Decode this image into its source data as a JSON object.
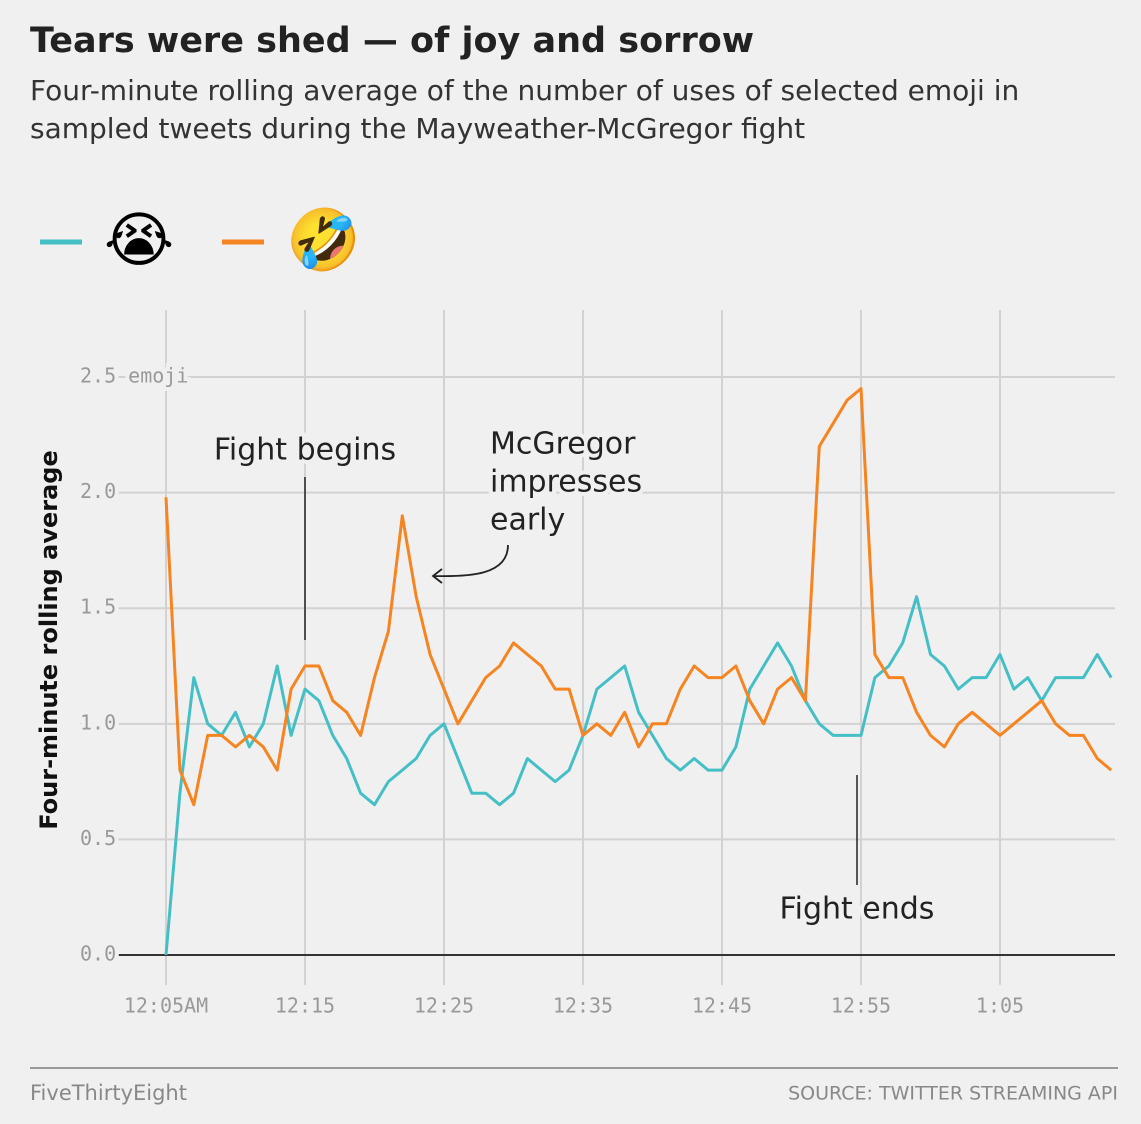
{
  "chart_data": {
    "type": "line",
    "title": "Tears were shed — of joy and sorrow",
    "subtitle": [
      "Four-minute rolling average of the number of uses of selected emoji in",
      "sampled tweets during the Mayweather-McGregor fight"
    ],
    "y_label": "Four-minute rolling average",
    "x": [
      5,
      6,
      7,
      8,
      9,
      10,
      11,
      12,
      13,
      14,
      15,
      16,
      17,
      18,
      19,
      20,
      21,
      22,
      23,
      24,
      25,
      26,
      27,
      28,
      29,
      30,
      31,
      32,
      33,
      34,
      35,
      36,
      37,
      38,
      39,
      40,
      41,
      42,
      43,
      44,
      45,
      46,
      47,
      48,
      49,
      50,
      51,
      52,
      53,
      54,
      55,
      56,
      57,
      58,
      59,
      60,
      61,
      62,
      63,
      64,
      65,
      66,
      67,
      68,
      69,
      70,
      71,
      72,
      73
    ],
    "series": [
      {
        "name": "😭",
        "color": "#45bfc6",
        "values": [
          0,
          0.7,
          1.2,
          1.0,
          0.95,
          1.05,
          0.9,
          1.0,
          1.25,
          0.95,
          1.15,
          1.1,
          0.95,
          0.85,
          0.7,
          0.65,
          0.75,
          0.8,
          0.85,
          0.95,
          1.0,
          0.85,
          0.7,
          0.7,
          0.65,
          0.7,
          0.85,
          0.8,
          0.75,
          0.8,
          0.95,
          1.15,
          1.2,
          1.25,
          1.05,
          0.95,
          0.85,
          0.8,
          0.85,
          0.8,
          0.8,
          0.9,
          1.15,
          1.25,
          1.35,
          1.25,
          1.1,
          1.0,
          0.95,
          0.95,
          0.95,
          1.2,
          1.25,
          1.35,
          1.55,
          1.3,
          1.25,
          1.15,
          1.2,
          1.2,
          1.3,
          1.15,
          1.2,
          1.1,
          1.2,
          1.2,
          1.2,
          1.3,
          1.2
        ]
      },
      {
        "name": "🤣",
        "color": "#f58421",
        "values": [
          1.98,
          0.8,
          0.65,
          0.95,
          0.95,
          0.9,
          0.95,
          0.9,
          0.8,
          1.15,
          1.25,
          1.25,
          1.1,
          1.05,
          0.95,
          1.2,
          1.4,
          1.9,
          1.55,
          1.3,
          1.15,
          1.0,
          1.1,
          1.2,
          1.25,
          1.35,
          1.3,
          1.25,
          1.15,
          1.15,
          0.95,
          1.0,
          0.95,
          1.05,
          0.9,
          1.0,
          1.0,
          1.15,
          1.25,
          1.2,
          1.2,
          1.25,
          1.1,
          1.0,
          1.15,
          1.2,
          1.1,
          2.2,
          2.3,
          2.4,
          2.45,
          1.3,
          1.2,
          1.2,
          1.05,
          0.95,
          0.9,
          1.0,
          1.05,
          1.0,
          0.95,
          1.0,
          1.05,
          1.1,
          1.0,
          0.95,
          0.95,
          0.85,
          0.8
        ]
      }
    ],
    "xlim": [
      5,
      73.6
    ],
    "xticks": [
      {
        "value": 5,
        "label": "12:05AM"
      },
      {
        "value": 15,
        "label": "12:15"
      },
      {
        "value": 25,
        "label": "12:25"
      },
      {
        "value": 35,
        "label": "12:35"
      },
      {
        "value": 45,
        "label": "12:45"
      },
      {
        "value": 55,
        "label": "12:55"
      },
      {
        "value": 65,
        "label": "1:05"
      }
    ],
    "ylim": [
      0,
      2.79
    ],
    "yticks": [
      {
        "value": 0,
        "label": "0.0"
      },
      {
        "value": 0.5,
        "label": "0.5"
      },
      {
        "value": 1,
        "label": "1.0"
      },
      {
        "value": 1.5,
        "label": "1.5"
      },
      {
        "value": 2,
        "label": "2.0"
      },
      {
        "value": 2.5,
        "label": "2.5 emoji"
      }
    ],
    "grid": true,
    "annotations": [
      {
        "lines": [
          "Fight begins"
        ]
      },
      {
        "lines": [
          "McGregor",
          "impresses",
          "early"
        ]
      },
      {
        "lines": [
          "Fight ends"
        ]
      }
    ],
    "footer": {
      "credit": "FiveThirtyEight",
      "source": "SOURCE: TWITTER STREAMING API"
    }
  }
}
